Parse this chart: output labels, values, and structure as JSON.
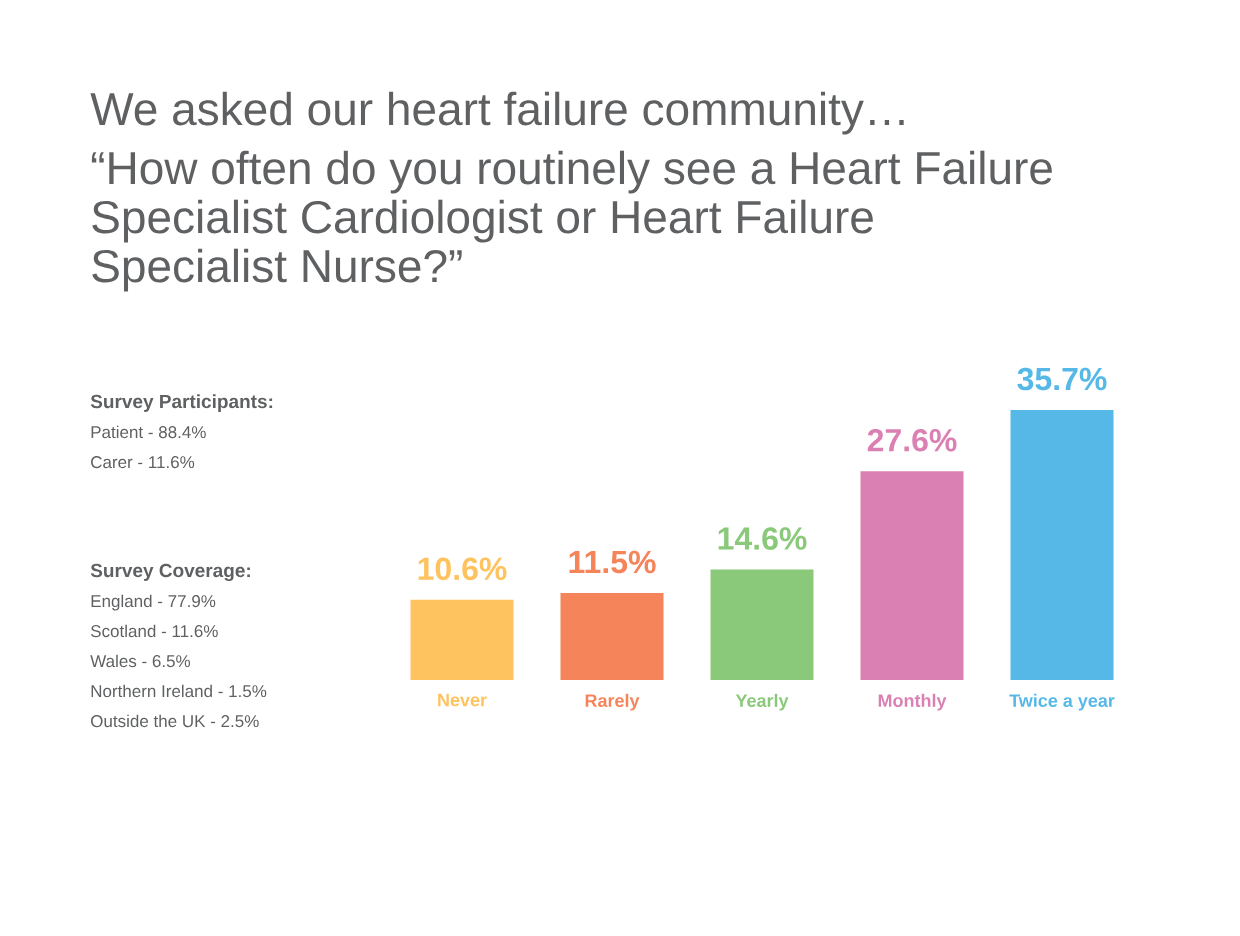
{
  "chart_data": [
    {
      "type": "bar",
      "title": "We asked our heart failure community…",
      "subtitle": "“How often do you routinely see a Heart Failure Specialist Cardiologist or Heart Failure Specialist Nurse?”",
      "categories": [
        "Never",
        "Rarely",
        "Yearly",
        "Monthly",
        "Twice a year"
      ],
      "values": [
        10.6,
        11.5,
        14.6,
        27.6,
        35.7
      ],
      "value_labels": [
        "10.6%",
        "11.5%",
        "14.6%",
        "27.6%",
        "35.7%"
      ],
      "colors": [
        "#fec35e",
        "#f5845a",
        "#8ac97a",
        "#db80b3",
        "#55b8e7"
      ]
    },
    {
      "type": "other",
      "title": "Survey Participants:",
      "annotations": [
        "Patient - 88.4%",
        "Carer - 11.6%"
      ]
    },
    {
      "type": "other",
      "title": "Survey Coverage:",
      "annotations": [
        "England - 77.9%",
        "Scotland - 11.6%",
        "Wales - 6.5%",
        "Northern Ireland - 1.5%",
        "Outside the UK - 2.5%"
      ]
    }
  ]
}
